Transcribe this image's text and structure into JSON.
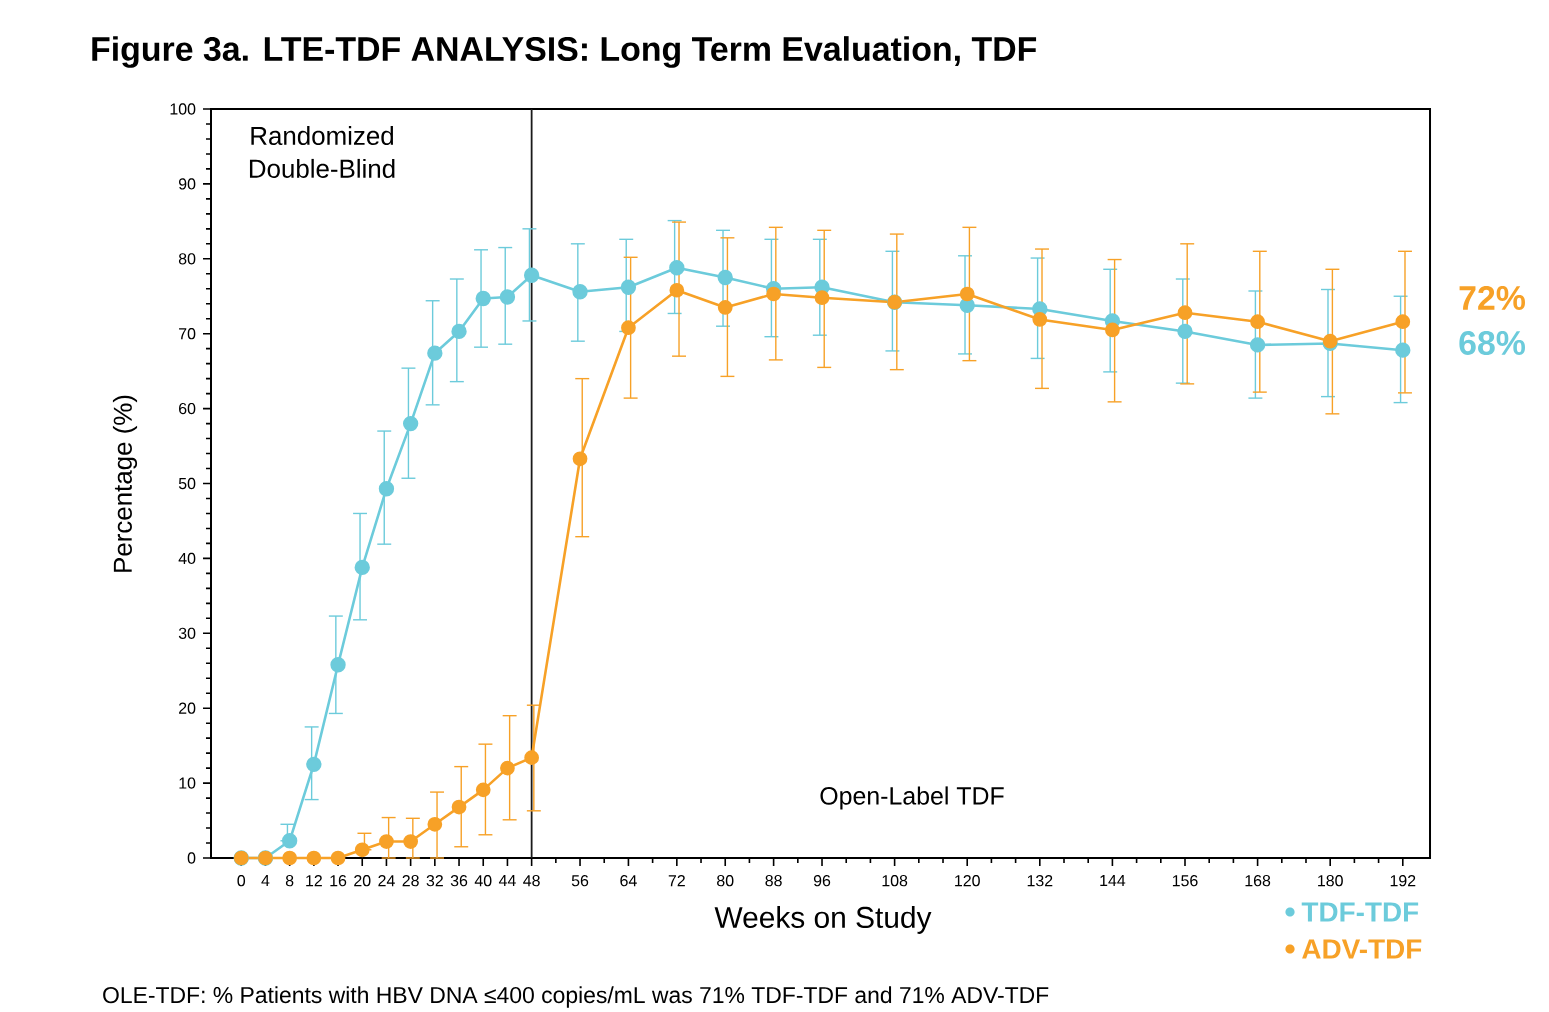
{
  "chart_data": {
    "type": "line",
    "title": "Figure 3a. LTE-TDF ANALYSIS: Long Term Evaluation, TDF",
    "xlabel": "Weeks on Study",
    "ylabel": "Percentage (%)",
    "xlim": [
      -5,
      196.5
    ],
    "ylim": [
      0,
      100
    ],
    "xticks": [
      0,
      4,
      8,
      12,
      16,
      20,
      24,
      28,
      32,
      36,
      40,
      44,
      48,
      56,
      64,
      72,
      80,
      88,
      96,
      108,
      120,
      132,
      144,
      156,
      168,
      180,
      192
    ],
    "yticks": [
      0,
      10,
      20,
      30,
      40,
      50,
      60,
      70,
      80,
      90,
      100
    ],
    "x": [
      0,
      4,
      8,
      12,
      16,
      20,
      24,
      28,
      32,
      36,
      40,
      44,
      48,
      56,
      64,
      72,
      80,
      88,
      96,
      108,
      120,
      132,
      144,
      156,
      168,
      180,
      192
    ],
    "series": [
      {
        "name": "TDF-TDF",
        "color": "#6ccbdb",
        "values": [
          0,
          0,
          2.3,
          12.5,
          25.8,
          38.8,
          49.3,
          58,
          67.4,
          70.3,
          74.7,
          74.9,
          77.8,
          75.6,
          76.2,
          78.8,
          77.5,
          76,
          76.2,
          74.2,
          73.8,
          73.3,
          71.7,
          70.3,
          68.5,
          68.7,
          67.8
        ],
        "errors": [
          null,
          null,
          [
            2.3,
            4.5
          ],
          [
            7.8,
            17.5
          ],
          [
            19.3,
            32.3
          ],
          [
            31.8,
            46
          ],
          [
            41.9,
            57
          ],
          [
            50.7,
            65.4
          ],
          [
            60.5,
            74.4
          ],
          [
            63.6,
            77.3
          ],
          [
            68.2,
            81.2
          ],
          [
            68.6,
            81.5
          ],
          [
            71.7,
            84
          ],
          [
            69,
            82
          ],
          [
            70.3,
            82.6
          ],
          [
            72.7,
            85.1
          ],
          [
            71,
            83.8
          ],
          [
            69.6,
            82.6
          ],
          [
            69.8,
            82.6
          ],
          [
            67.7,
            81
          ],
          [
            67.3,
            80.4
          ],
          [
            66.7,
            80.1
          ],
          [
            64.9,
            78.6
          ],
          [
            63.4,
            77.3
          ],
          [
            61.4,
            75.7
          ],
          [
            61.6,
            75.9
          ],
          [
            60.8,
            75
          ]
        ]
      },
      {
        "name": "ADV-TDF",
        "color": "#f7a127",
        "values": [
          0,
          0,
          0,
          0,
          0,
          1.1,
          2.2,
          2.2,
          4.5,
          6.8,
          9.1,
          12,
          13.4,
          53.3,
          70.8,
          75.8,
          73.5,
          75.3,
          74.8,
          74.2,
          75.3,
          71.9,
          70.5,
          72.8,
          71.6,
          69,
          71.6
        ],
        "errors": [
          null,
          null,
          null,
          null,
          null,
          [
            1.1,
            3.3
          ],
          [
            0,
            5.4
          ],
          [
            0,
            5.3
          ],
          [
            0,
            8.8
          ],
          [
            1.5,
            12.2
          ],
          [
            3.1,
            15.2
          ],
          [
            5.1,
            19
          ],
          [
            6.3,
            20.4
          ],
          [
            42.9,
            64
          ],
          [
            61.4,
            80.2
          ],
          [
            67,
            84.9
          ],
          [
            64.3,
            82.8
          ],
          [
            66.5,
            84.2
          ],
          [
            65.5,
            83.8
          ],
          [
            65.2,
            83.3
          ],
          [
            66.4,
            84.2
          ],
          [
            62.7,
            81.3
          ],
          [
            60.9,
            79.9
          ],
          [
            63.3,
            82
          ],
          [
            62.2,
            81
          ],
          [
            59.3,
            78.6
          ],
          [
            62.1,
            81
          ]
        ]
      }
    ],
    "ref_lines": [
      {
        "axis": "x",
        "value": 48,
        "color": "#1a1a1a"
      }
    ],
    "annotations": [
      "Randomized Double-Blind",
      "Open-Label TDF",
      "72%",
      "68%",
      "OLE-TDF: % Patients with HBV DNA ≤400 copies/mL was 71% TDF-TDF and 71% ADV-TDF"
    ],
    "marker": "circle",
    "line_style": "solid",
    "grid": false,
    "legend": "bottom right"
  }
}
